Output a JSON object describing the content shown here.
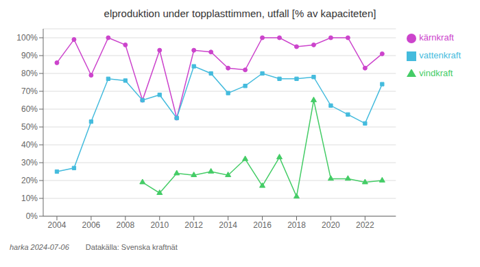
{
  "chart_data": {
    "type": "line",
    "title": "elproduktion under topplasttimmen, utfall [% av kapaciteten]",
    "series": [
      {
        "name": "kärnkraft",
        "color": "#cc44cc",
        "marker": "circle",
        "x": [
          2004,
          2005,
          2006,
          2007,
          2008,
          2009,
          2010,
          2011,
          2012,
          2013,
          2014,
          2015,
          2016,
          2017,
          2018,
          2019,
          2020,
          2021,
          2022,
          2023
        ],
        "values": [
          86,
          99,
          79,
          100,
          96,
          65,
          93,
          55,
          93,
          92,
          83,
          82,
          100,
          100,
          95,
          96,
          100,
          100,
          83,
          91
        ]
      },
      {
        "name": "vattenkraft",
        "color": "#44bbdd",
        "marker": "square",
        "x": [
          2004,
          2005,
          2006,
          2007,
          2008,
          2009,
          2010,
          2011,
          2012,
          2013,
          2014,
          2015,
          2016,
          2017,
          2018,
          2019,
          2020,
          2021,
          2022,
          2023
        ],
        "values": [
          25,
          27,
          53,
          77,
          76,
          65,
          68,
          55,
          84,
          80,
          69,
          73,
          80,
          77,
          77,
          78,
          62,
          57,
          52,
          74
        ]
      },
      {
        "name": "vindkraft",
        "color": "#44cc66",
        "marker": "triangle",
        "x": [
          2009,
          2010,
          2011,
          2012,
          2013,
          2014,
          2015,
          2016,
          2017,
          2018,
          2019,
          2020,
          2021,
          2022,
          2023
        ],
        "values": [
          19,
          13,
          24,
          23,
          25,
          23,
          32,
          17,
          33,
          11,
          65,
          21,
          21,
          19,
          20
        ]
      }
    ],
    "xlim": [
      2003.2,
      2023.8
    ],
    "xticks": [
      2004,
      2006,
      2008,
      2010,
      2012,
      2014,
      2016,
      2018,
      2020,
      2022
    ],
    "ylim": [
      0,
      105
    ],
    "yticks": [
      {
        "value": 0,
        "label": "0%"
      },
      {
        "value": 10,
        "label": "10%"
      },
      {
        "value": 20,
        "label": "20%"
      },
      {
        "value": 30,
        "label": "30%"
      },
      {
        "value": 40,
        "label": "40%"
      },
      {
        "value": 50,
        "label": "50%"
      },
      {
        "value": 60,
        "label": "60%"
      },
      {
        "value": 70,
        "label": "70%"
      },
      {
        "value": 80,
        "label": "80%"
      },
      {
        "value": 90,
        "label": "90%"
      },
      {
        "value": 100,
        "label": "100%"
      }
    ],
    "grid": true,
    "legend": "right",
    "annotations": [
      "harka 2024-07-06",
      "Datakälla: Svenska kraftnät"
    ]
  }
}
